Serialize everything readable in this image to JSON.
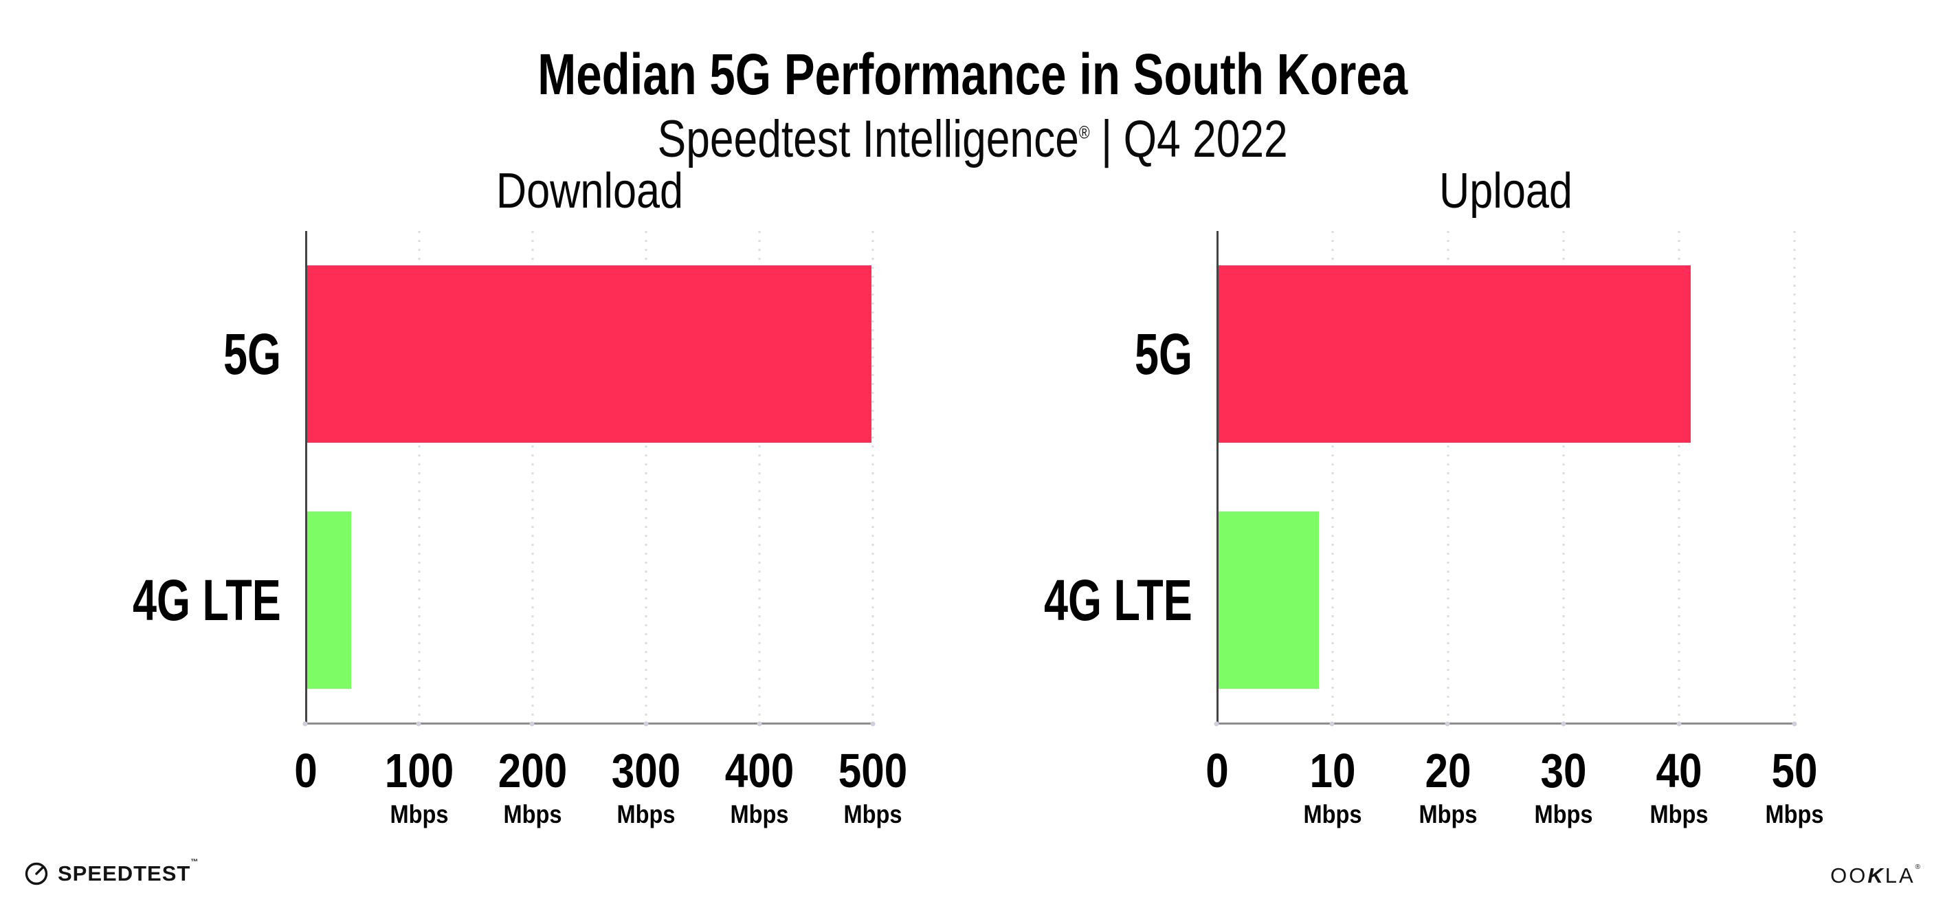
{
  "title": "Median 5G Performance in South Korea",
  "subtitle": {
    "brand": "Speedtest Intelligence",
    "registered_mark": "®",
    "separator": "|",
    "period": "Q4 2022"
  },
  "footer": {
    "speedtest_wordmark": "SPEEDTEST",
    "speedtest_mark": "™",
    "speedtest_icon": "gauge-icon",
    "ookla_wordmark_prefix": "OO",
    "ookla_wordmark_k": "K",
    "ookla_wordmark_suffix": "LA",
    "ookla_mark": "®"
  },
  "colors": {
    "bar_5g": "#FD2D55",
    "bar_4g_lte": "#7EFC66",
    "gridline": "#dbdce6",
    "x_axis_line": "#8d8d8d",
    "y_axis_line": "#444444",
    "tick_dot": "#ced0dc",
    "text": "#000000",
    "background": "#ffffff"
  },
  "chart_data": [
    {
      "type": "bar",
      "orientation": "horizontal",
      "title": "Download",
      "categories": [
        "5G",
        "4G LTE"
      ],
      "values": [
        499,
        40
      ],
      "unit": "Mbps",
      "xlim": [
        0,
        500
      ],
      "ticks": [
        {
          "label": "0",
          "unit": ""
        },
        {
          "label": "100",
          "unit": "Mbps"
        },
        {
          "label": "200",
          "unit": "Mbps"
        },
        {
          "label": "300",
          "unit": "Mbps"
        },
        {
          "label": "400",
          "unit": "Mbps"
        },
        {
          "label": "500",
          "unit": "Mbps"
        }
      ],
      "bar_colors": [
        "#FD2D55",
        "#7EFC66"
      ],
      "grid": "dotted vertical gridlines at each labeled tick",
      "legend": "none"
    },
    {
      "type": "bar",
      "orientation": "horizontal",
      "title": "Upload",
      "categories": [
        "5G",
        "4G LTE"
      ],
      "values": [
        41,
        8.8
      ],
      "unit": "Mbps",
      "xlim": [
        0,
        50
      ],
      "ticks": [
        {
          "label": "0",
          "unit": ""
        },
        {
          "label": "10",
          "unit": "Mbps"
        },
        {
          "label": "20",
          "unit": "Mbps"
        },
        {
          "label": "30",
          "unit": "Mbps"
        },
        {
          "label": "40",
          "unit": "Mbps"
        },
        {
          "label": "50",
          "unit": "Mbps"
        }
      ],
      "bar_colors": [
        "#FD2D55",
        "#7EFC66"
      ],
      "grid": "dotted vertical gridlines at each labeled tick",
      "legend": "none"
    }
  ]
}
